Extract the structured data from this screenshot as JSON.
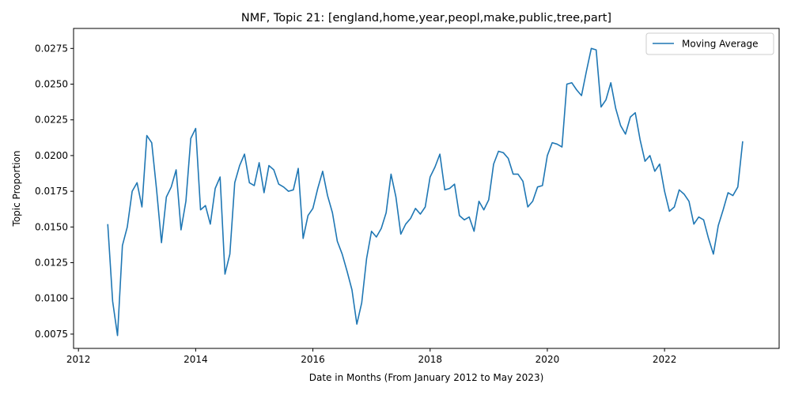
{
  "chart_data": {
    "type": "line",
    "title": "NMF, Topic 21: [england,home,year,peopl,make,public,tree,part]",
    "xlabel": "Date in Months (From January 2012 to May 2023)",
    "ylabel": "Topic Proportion",
    "xlim": [
      "2011-12-01",
      "2023-12-15"
    ],
    "ylim": [
      0.0065,
      0.0289
    ],
    "x_ticks": [
      "2012",
      "2014",
      "2016",
      "2018",
      "2020",
      "2022"
    ],
    "y_ticks": [
      "0.0075",
      "0.0100",
      "0.0125",
      "0.0150",
      "0.0175",
      "0.0200",
      "0.0225",
      "0.0250",
      "0.0275"
    ],
    "grid": false,
    "legend": {
      "position": "top-right",
      "entries": [
        "Moving Average"
      ]
    },
    "series": [
      {
        "name": "Moving Average",
        "color": "#1f77b4",
        "x": [
          "2012-07",
          "2012-08",
          "2012-09",
          "2012-10",
          "2012-11",
          "2012-12",
          "2013-01",
          "2013-02",
          "2013-03",
          "2013-04",
          "2013-05",
          "2013-06",
          "2013-07",
          "2013-08",
          "2013-09",
          "2013-10",
          "2013-11",
          "2013-12",
          "2014-01",
          "2014-02",
          "2014-03",
          "2014-04",
          "2014-05",
          "2014-06",
          "2014-07",
          "2014-08",
          "2014-09",
          "2014-10",
          "2014-11",
          "2014-12",
          "2015-01",
          "2015-02",
          "2015-03",
          "2015-04",
          "2015-05",
          "2015-06",
          "2015-07",
          "2015-08",
          "2015-09",
          "2015-10",
          "2015-11",
          "2015-12",
          "2016-01",
          "2016-02",
          "2016-03",
          "2016-04",
          "2016-05",
          "2016-06",
          "2016-07",
          "2016-08",
          "2016-09",
          "2016-10",
          "2016-11",
          "2016-12",
          "2017-01",
          "2017-02",
          "2017-03",
          "2017-04",
          "2017-05",
          "2017-06",
          "2017-07",
          "2017-08",
          "2017-09",
          "2017-10",
          "2017-11",
          "2017-12",
          "2018-01",
          "2018-02",
          "2018-03",
          "2018-04",
          "2018-05",
          "2018-06",
          "2018-07",
          "2018-08",
          "2018-09",
          "2018-10",
          "2018-11",
          "2018-12",
          "2019-01",
          "2019-02",
          "2019-03",
          "2019-04",
          "2019-05",
          "2019-06",
          "2019-07",
          "2019-08",
          "2019-09",
          "2019-10",
          "2019-11",
          "2019-12",
          "2020-01",
          "2020-02",
          "2020-03",
          "2020-04",
          "2020-05",
          "2020-06",
          "2020-07",
          "2020-08",
          "2020-09",
          "2020-10",
          "2020-11",
          "2020-12",
          "2021-01",
          "2021-02",
          "2021-03",
          "2021-04",
          "2021-05",
          "2021-06",
          "2021-07",
          "2021-08",
          "2021-09",
          "2021-10",
          "2021-11",
          "2021-12",
          "2022-01",
          "2022-02",
          "2022-03",
          "2022-04",
          "2022-05",
          "2022-06",
          "2022-07",
          "2022-08",
          "2022-09",
          "2022-10",
          "2022-11",
          "2022-12",
          "2023-01",
          "2023-02",
          "2023-03",
          "2023-04",
          "2023-05"
        ],
        "values": [
          0.0152,
          0.0098,
          0.0074,
          0.0137,
          0.015,
          0.0175,
          0.0181,
          0.0164,
          0.0214,
          0.0209,
          0.0176,
          0.0139,
          0.0171,
          0.0178,
          0.019,
          0.0148,
          0.0168,
          0.0212,
          0.0219,
          0.0162,
          0.0165,
          0.0152,
          0.0177,
          0.0185,
          0.0117,
          0.0131,
          0.0181,
          0.0193,
          0.0201,
          0.0181,
          0.0179,
          0.0195,
          0.0174,
          0.0193,
          0.019,
          0.018,
          0.0178,
          0.0175,
          0.0176,
          0.0191,
          0.0142,
          0.0158,
          0.0163,
          0.0177,
          0.0189,
          0.0172,
          0.016,
          0.014,
          0.0131,
          0.0119,
          0.0106,
          0.0082,
          0.0097,
          0.0128,
          0.0147,
          0.0143,
          0.0149,
          0.016,
          0.0187,
          0.0171,
          0.0145,
          0.0152,
          0.0156,
          0.0163,
          0.0159,
          0.0164,
          0.0185,
          0.0192,
          0.0201,
          0.0176,
          0.0177,
          0.018,
          0.0158,
          0.0155,
          0.0157,
          0.0147,
          0.0168,
          0.0162,
          0.0169,
          0.0194,
          0.0203,
          0.0202,
          0.0198,
          0.0187,
          0.0187,
          0.0182,
          0.0164,
          0.0168,
          0.0178,
          0.0179,
          0.02,
          0.0209,
          0.0208,
          0.0206,
          0.025,
          0.0251,
          0.0246,
          0.0242,
          0.0259,
          0.0275,
          0.0274,
          0.0234,
          0.0239,
          0.0251,
          0.0233,
          0.0221,
          0.0215,
          0.0227,
          0.023,
          0.0211,
          0.0196,
          0.02,
          0.0189,
          0.0194,
          0.0175,
          0.0161,
          0.0164,
          0.0176,
          0.0173,
          0.0168,
          0.0152,
          0.0157,
          0.0155,
          0.0142,
          0.0131,
          0.0151,
          0.0162,
          0.0174,
          0.0172,
          0.0178,
          0.021
        ]
      }
    ]
  }
}
